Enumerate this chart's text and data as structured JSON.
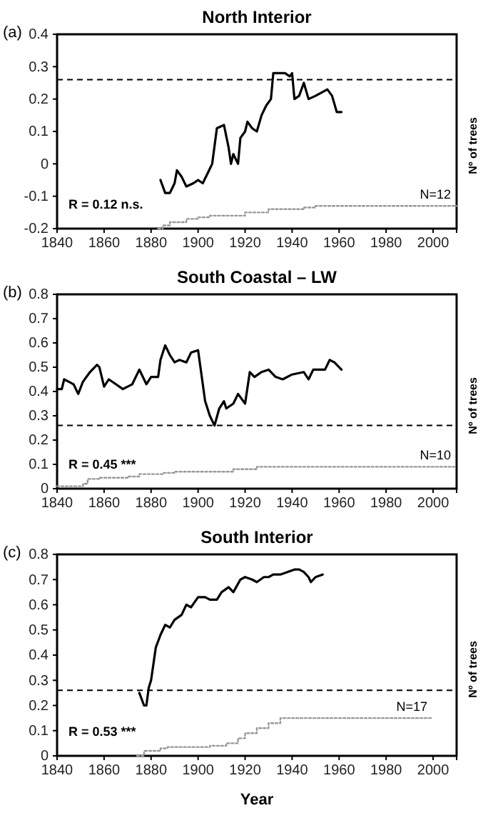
{
  "chart_data": [
    {
      "type": "line",
      "title": "North Interior",
      "y2label": "Nº of trees",
      "xlim": [
        1840,
        2010
      ],
      "xticks": [
        1840,
        1860,
        1880,
        1900,
        1920,
        1940,
        1960,
        1980,
        2000
      ],
      "ylim": [
        -0.2,
        0.4
      ],
      "yticks": [
        -0.2,
        -0.1,
        0,
        0.1,
        0.2,
        0.3,
        0.4
      ],
      "grid": false,
      "series": [
        {
          "color": "#000000",
          "x": [
            1884,
            1886,
            1888,
            1890,
            1891,
            1893,
            1895,
            1898,
            1900,
            1902,
            1904,
            1906,
            1908,
            1911,
            1913,
            1914,
            1915,
            1917,
            1918,
            1920,
            1921,
            1923,
            1925,
            1927,
            1929,
            1931,
            1932,
            1935,
            1937,
            1939,
            1940,
            1941,
            1943,
            1945,
            1947,
            1950,
            1955,
            1957,
            1959,
            1961
          ],
          "values": [
            -0.05,
            -0.09,
            -0.09,
            -0.06,
            -0.02,
            -0.04,
            -0.07,
            -0.06,
            -0.05,
            -0.06,
            -0.03,
            0.0,
            0.11,
            0.12,
            0.05,
            0.0,
            0.03,
            0.0,
            0.08,
            0.1,
            0.13,
            0.11,
            0.1,
            0.15,
            0.18,
            0.2,
            0.28,
            0.28,
            0.28,
            0.27,
            0.28,
            0.2,
            0.21,
            0.25,
            0.2,
            0.21,
            0.23,
            0.21,
            0.16,
            0.16
          ]
        },
        {
          "type": "step",
          "line_style": "dotted",
          "color": "#999999",
          "x": [
            1883,
            1885,
            1888,
            1895,
            1900,
            1905,
            1920,
            1930,
            1945,
            1950,
            2010
          ],
          "values": [
            -0.2,
            -0.19,
            -0.18,
            -0.17,
            -0.165,
            -0.16,
            -0.15,
            -0.14,
            -0.135,
            -0.13,
            -0.13
          ]
        }
      ],
      "ref_lines": [
        {
          "axis": "y",
          "value": 0.26,
          "line_style": "dashed",
          "color": "#000000"
        }
      ],
      "annotations": [
        "(a)",
        "R = 0.12 n.s.",
        "N=12"
      ]
    },
    {
      "type": "line",
      "title": "South Coastal – LW",
      "y2label": "Nº of trees",
      "xlim": [
        1840,
        2010
      ],
      "xticks": [
        1840,
        1860,
        1880,
        1900,
        1920,
        1940,
        1960,
        1980,
        2000
      ],
      "ylim": [
        0,
        0.8
      ],
      "yticks": [
        0,
        0.1,
        0.2,
        0.3,
        0.4,
        0.5,
        0.6,
        0.7,
        0.8
      ],
      "grid": false,
      "series": [
        {
          "color": "#000000",
          "x": [
            1840,
            1842,
            1843,
            1845,
            1847,
            1849,
            1851,
            1854,
            1857,
            1858,
            1860,
            1862,
            1865,
            1868,
            1872,
            1875,
            1878,
            1880,
            1883,
            1884,
            1886,
            1888,
            1890,
            1892,
            1895,
            1897,
            1900,
            1901,
            1903,
            1905,
            1907,
            1909,
            1911,
            1912,
            1915,
            1917,
            1920,
            1922,
            1924,
            1927,
            1930,
            1933,
            1936,
            1940,
            1945,
            1947,
            1949,
            1954,
            1956,
            1958,
            1961
          ],
          "values": [
            0.41,
            0.41,
            0.45,
            0.44,
            0.43,
            0.39,
            0.44,
            0.48,
            0.51,
            0.5,
            0.42,
            0.45,
            0.43,
            0.41,
            0.43,
            0.49,
            0.43,
            0.46,
            0.46,
            0.53,
            0.59,
            0.55,
            0.52,
            0.53,
            0.52,
            0.56,
            0.57,
            0.5,
            0.36,
            0.3,
            0.26,
            0.33,
            0.36,
            0.33,
            0.35,
            0.39,
            0.35,
            0.48,
            0.46,
            0.48,
            0.49,
            0.46,
            0.45,
            0.47,
            0.48,
            0.45,
            0.49,
            0.49,
            0.53,
            0.52,
            0.49
          ]
        },
        {
          "type": "step",
          "line_style": "dotted",
          "color": "#999999",
          "x": [
            1840,
            1849,
            1851,
            1853,
            1858,
            1870,
            1875,
            1885,
            1890,
            1915,
            1925,
            2010
          ],
          "values": [
            0.01,
            0.01,
            0.02,
            0.04,
            0.045,
            0.05,
            0.06,
            0.065,
            0.07,
            0.08,
            0.09,
            0.09
          ]
        }
      ],
      "ref_lines": [
        {
          "axis": "y",
          "value": 0.26,
          "line_style": "dashed",
          "color": "#000000"
        }
      ],
      "annotations": [
        "(b)",
        "R = 0.45 ***",
        "N=10"
      ]
    },
    {
      "type": "line",
      "title": "South Interior",
      "xlabel": "Year",
      "y2label": "Nº of trees",
      "xlim": [
        1840,
        2010
      ],
      "xticks": [
        1840,
        1860,
        1880,
        1900,
        1920,
        1940,
        1960,
        1980,
        2000
      ],
      "ylim": [
        0,
        0.8
      ],
      "yticks": [
        0,
        0.1,
        0.2,
        0.3,
        0.4,
        0.5,
        0.6,
        0.7,
        0.8
      ],
      "grid": false,
      "series": [
        {
          "color": "#000000",
          "x": [
            1875,
            1877,
            1878,
            1879,
            1880,
            1882,
            1884,
            1886,
            1888,
            1890,
            1893,
            1895,
            1897,
            1900,
            1903,
            1905,
            1908,
            1910,
            1913,
            1915,
            1918,
            1920,
            1923,
            1925,
            1928,
            1930,
            1932,
            1935,
            1938,
            1941,
            1943,
            1945,
            1947,
            1948,
            1950,
            1953
          ],
          "values": [
            0.25,
            0.2,
            0.2,
            0.27,
            0.3,
            0.43,
            0.48,
            0.52,
            0.51,
            0.54,
            0.56,
            0.6,
            0.59,
            0.63,
            0.63,
            0.62,
            0.62,
            0.65,
            0.67,
            0.65,
            0.7,
            0.71,
            0.7,
            0.69,
            0.71,
            0.71,
            0.72,
            0.72,
            0.73,
            0.74,
            0.74,
            0.73,
            0.71,
            0.69,
            0.71,
            0.72
          ]
        },
        {
          "type": "step",
          "line_style": "dotted",
          "color": "#999999",
          "x": [
            1874,
            1877,
            1884,
            1887,
            1905,
            1912,
            1917,
            1920,
            1925,
            1930,
            1935,
            2000
          ],
          "values": [
            0.0,
            0.02,
            0.03,
            0.035,
            0.04,
            0.05,
            0.07,
            0.09,
            0.11,
            0.13,
            0.15,
            0.15
          ]
        }
      ],
      "ref_lines": [
        {
          "axis": "y",
          "value": 0.26,
          "line_style": "dashed",
          "color": "#000000"
        }
      ],
      "annotations": [
        "(c)",
        "R = 0.53 ***",
        "N=17"
      ]
    }
  ]
}
